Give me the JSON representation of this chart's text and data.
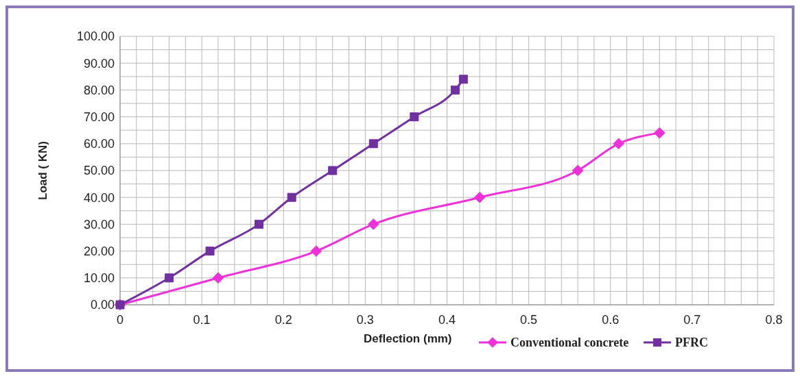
{
  "chart_data": {
    "type": "line",
    "xlabel": "Deflection (mm)",
    "ylabel": "Load ( KN)",
    "xlim": [
      0,
      0.8
    ],
    "xticks": [
      0,
      0.1,
      0.2,
      0.3,
      0.4,
      0.5,
      0.6,
      0.7,
      0.8
    ],
    "ylim": [
      0,
      100
    ],
    "yticks": [
      {
        "value": 0,
        "label": "0.00"
      },
      {
        "value": 10,
        "label": "10.00"
      },
      {
        "value": 20,
        "label": "20.00"
      },
      {
        "value": 30,
        "label": "30.00"
      },
      {
        "value": 40,
        "label": "40.00"
      },
      {
        "value": 50,
        "label": "50.00"
      },
      {
        "value": 60,
        "label": "60.00"
      },
      {
        "value": 70,
        "label": "70.00"
      },
      {
        "value": 80,
        "label": "80.00"
      },
      {
        "value": 90,
        "label": "90.00"
      },
      {
        "value": 100,
        "label": "100.00"
      }
    ],
    "grid": true,
    "legend": "bottom right",
    "series": [
      {
        "name": "Conventional concrete",
        "color": "#f030d8",
        "marker": "diamond",
        "x": [
          0,
          0.12,
          0.24,
          0.31,
          0.44,
          0.56,
          0.61,
          0.66
        ],
        "values": [
          0,
          10,
          20,
          30,
          40,
          50,
          60,
          64
        ]
      },
      {
        "name": "PFRC",
        "color": "#7030a0",
        "marker": "square",
        "x": [
          0,
          0.06,
          0.11,
          0.17,
          0.21,
          0.26,
          0.31,
          0.36,
          0.41,
          0.42
        ],
        "values": [
          0,
          10,
          20,
          30,
          40,
          50,
          60,
          70,
          80,
          84
        ]
      }
    ]
  }
}
